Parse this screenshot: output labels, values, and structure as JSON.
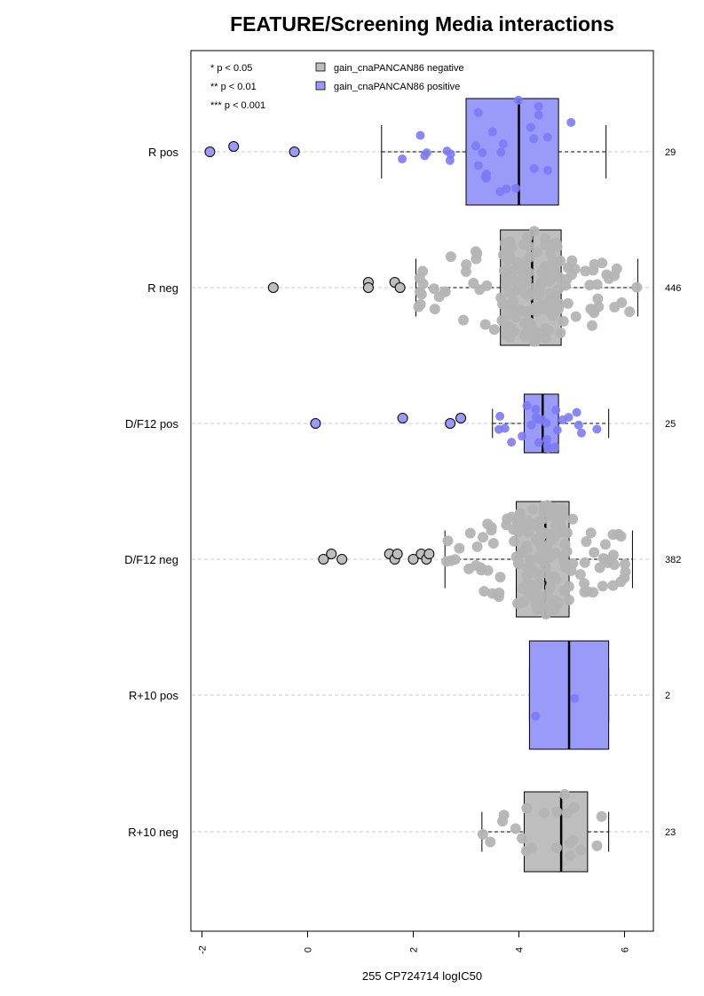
{
  "chart_data": {
    "type": "boxplot",
    "title": "FEATURE/Screening Media interactions",
    "xlabel": "255 CP724714 logIC50",
    "ylabel": "",
    "xlim": [
      -2.2,
      6.5
    ],
    "x_ticks": [
      -2,
      0,
      2,
      4,
      6
    ],
    "x_tick_labels": [
      "-2",
      "0",
      "2",
      "4",
      "6"
    ],
    "orientation": "horizontal",
    "grid": "dashed horizontal lines at each group",
    "legend_position": "top-left",
    "legend": [
      {
        "label": "gain_cnaPANCAN86 negative",
        "color": "#bebebe"
      },
      {
        "label": "gain_cnaPANCAN86 positive",
        "color": "#9a9af8"
      }
    ],
    "significance_legend": [
      "* p < 0.05",
      "** p < 0.01",
      "*** p < 0.001"
    ],
    "groups": [
      {
        "label": "R pos",
        "n": "29",
        "status": "positive",
        "q1": 3.0,
        "median": 4.0,
        "q3": 4.75,
        "whisker_low": 1.4,
        "whisker_high": 5.65,
        "outliers": [
          -1.85,
          -1.4,
          -0.25
        ]
      },
      {
        "label": "R neg",
        "n": "446",
        "status": "negative",
        "q1": 3.65,
        "median": 4.25,
        "q3": 4.8,
        "whisker_low": 2.05,
        "whisker_high": 6.25,
        "outliers": [
          -0.65,
          1.15,
          1.15,
          1.65,
          1.75
        ]
      },
      {
        "label": "D/F12 pos",
        "n": "25",
        "status": "positive",
        "q1": 4.1,
        "median": 4.45,
        "q3": 4.75,
        "whisker_low": 3.5,
        "whisker_high": 5.7,
        "outliers": [
          0.15,
          1.8,
          2.7,
          2.9
        ]
      },
      {
        "label": "D/F12 neg",
        "n": "382",
        "status": "negative",
        "q1": 3.95,
        "median": 4.5,
        "q3": 4.95,
        "whisker_low": 2.6,
        "whisker_high": 6.15,
        "outliers": [
          0.3,
          0.45,
          0.65,
          1.55,
          1.65,
          1.7,
          2.0,
          2.15,
          2.25,
          2.3
        ]
      },
      {
        "label": "R+10 pos",
        "n": "2",
        "status": "positive",
        "q1": 4.2,
        "median": 4.95,
        "q3": 5.7,
        "whisker_low": 4.2,
        "whisker_high": 5.7,
        "outliers": []
      },
      {
        "label": "R+10 neg",
        "n": "23",
        "status": "negative",
        "q1": 4.1,
        "median": 4.8,
        "q3": 5.3,
        "whisker_low": 3.3,
        "whisker_high": 5.7,
        "outliers": []
      }
    ]
  }
}
